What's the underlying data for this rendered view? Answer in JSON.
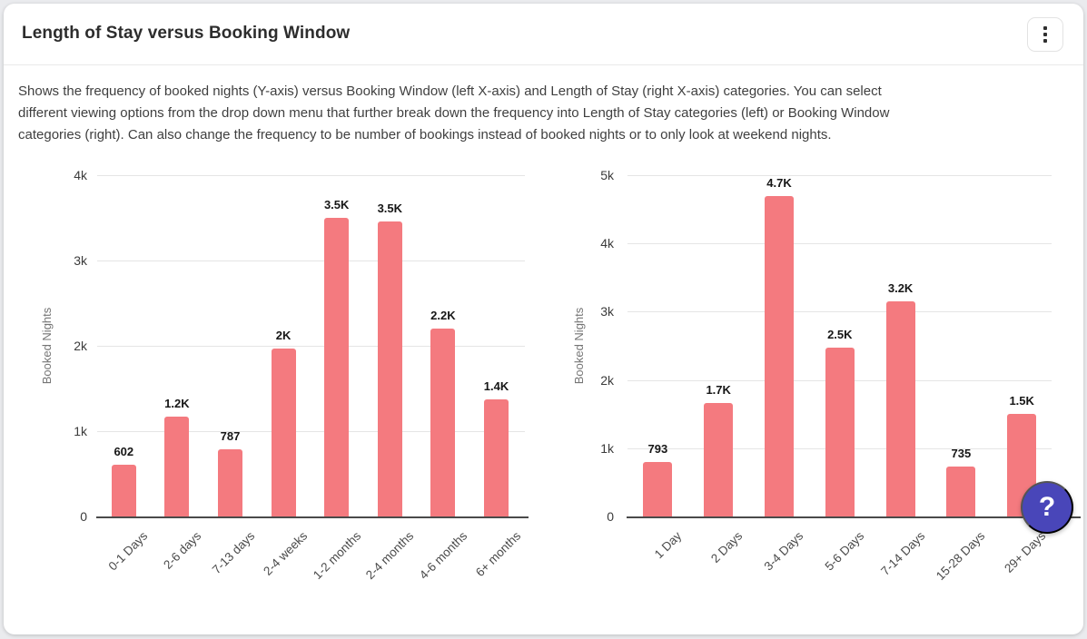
{
  "page": {
    "title": "Length of Stay versus Booking Window",
    "description_lines": [
      "Shows the frequency of booked nights (Y-axis) versus Booking Window (left X-axis) and Length of Stay (right X-axis) categories. You can select",
      "different viewing options from the drop down menu that further break down the frequency into Length of Stay categories (left) or Booking Window",
      "categories (right). Can also change the frequency to be number of bookings instead of booked nights or to only look at weekend nights."
    ],
    "help_button_label": "?"
  },
  "colors": {
    "bar": "#f47a7f",
    "accent": "#4946b9",
    "grid": "#e5e5e5",
    "axis": "#4a4a4a"
  },
  "chart_data": [
    {
      "type": "bar",
      "name": "booking-window-chart",
      "title": "",
      "xlabel": "",
      "ylabel": "Booked Nights",
      "ylim": [
        0,
        4000
      ],
      "grid": true,
      "legend": "none",
      "ytick_values": [
        0,
        1000,
        2000,
        3000,
        4000
      ],
      "ytick_labels": [
        "0",
        "1k",
        "2k",
        "3k",
        "4k"
      ],
      "categories": [
        "0-1 Days",
        "2-6 days",
        "7-13 days",
        "2-4 weeks",
        "1-2 months",
        "2-4 months",
        "4-6 months",
        "6+ months"
      ],
      "values": [
        602,
        1170,
        787,
        1970,
        3500,
        3460,
        2200,
        1370
      ],
      "value_labels": [
        "602",
        "1.2K",
        "787",
        "2K",
        "3.5K",
        "3.5K",
        "2.2K",
        "1.4K"
      ]
    },
    {
      "type": "bar",
      "name": "length-of-stay-chart",
      "title": "",
      "xlabel": "",
      "ylabel": "Booked Nights",
      "ylim": [
        0,
        5000
      ],
      "grid": true,
      "legend": "none",
      "ytick_values": [
        0,
        1000,
        2000,
        3000,
        4000,
        5000
      ],
      "ytick_labels": [
        "0",
        "1k",
        "2k",
        "3k",
        "4k",
        "5k"
      ],
      "categories": [
        "1 Day",
        "2 Days",
        "3-4 Days",
        "5-6 Days",
        "7-14 Days",
        "15-28 Days",
        "29+ Days"
      ],
      "values": [
        793,
        1660,
        4700,
        2480,
        3150,
        735,
        1500
      ],
      "value_labels": [
        "793",
        "1.7K",
        "4.7K",
        "2.5K",
        "3.2K",
        "735",
        "1.5K"
      ]
    }
  ]
}
